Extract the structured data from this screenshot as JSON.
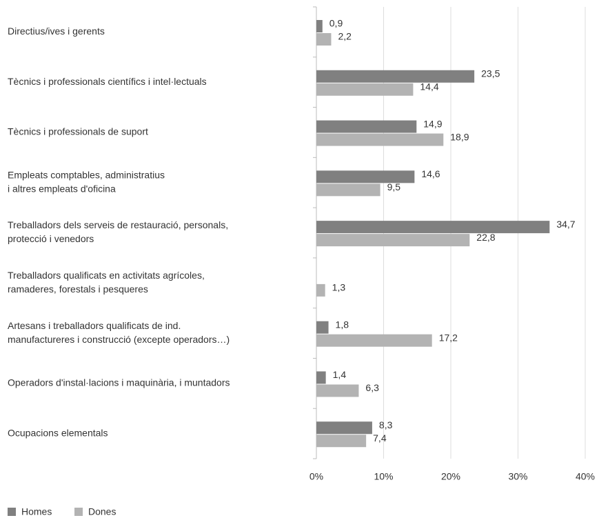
{
  "chart_data": {
    "type": "bar",
    "orientation": "horizontal",
    "categories": [
      [
        "Directius/ives i gerents"
      ],
      [
        "Tècnics i professionals científics i intel·lectuals"
      ],
      [
        "Tècnics i professionals de suport"
      ],
      [
        "Empleats comptables, administratius",
        "i altres empleats d'oficina"
      ],
      [
        "Treballadors dels serveis de restauració, personals,",
        "protecció i venedors"
      ],
      [
        "Treballadors qualificats en activitats agrícoles,",
        "ramaderes, forestals i pesqueres"
      ],
      [
        "Artesans i treballadors qualificats de ind.",
        "manufactureres i construcció (excepte operadors…)"
      ],
      [
        "Operadors d'instal·lacions i maquinària, i muntadors"
      ],
      [
        "Ocupacions elementals"
      ]
    ],
    "series": [
      {
        "name": "Homes",
        "color": "#808080",
        "values": [
          0.9,
          23.5,
          14.9,
          14.6,
          34.7,
          null,
          1.8,
          1.4,
          8.3
        ],
        "value_labels": [
          "0,9",
          "23,5",
          "14,9",
          "14,6",
          "34,7",
          null,
          "1,8",
          "1,4",
          "8,3"
        ]
      },
      {
        "name": "Dones",
        "color": "#b3b3b3",
        "values": [
          2.2,
          14.4,
          18.9,
          9.5,
          22.8,
          1.3,
          17.2,
          6.3,
          7.4
        ],
        "value_labels": [
          "2,2",
          "14,4",
          "18,9",
          "9,5",
          "22,8",
          "1,3",
          "17,2",
          "6,3",
          "7,4"
        ]
      }
    ],
    "xlim": [
      0,
      40
    ],
    "xticks": [
      {
        "value": 0,
        "label": "0%"
      },
      {
        "value": 10,
        "label": "10%"
      },
      {
        "value": 20,
        "label": "20%"
      },
      {
        "value": 30,
        "label": "30%"
      },
      {
        "value": 40,
        "label": "40%"
      }
    ],
    "grid": true,
    "legend": "bottom-left"
  }
}
